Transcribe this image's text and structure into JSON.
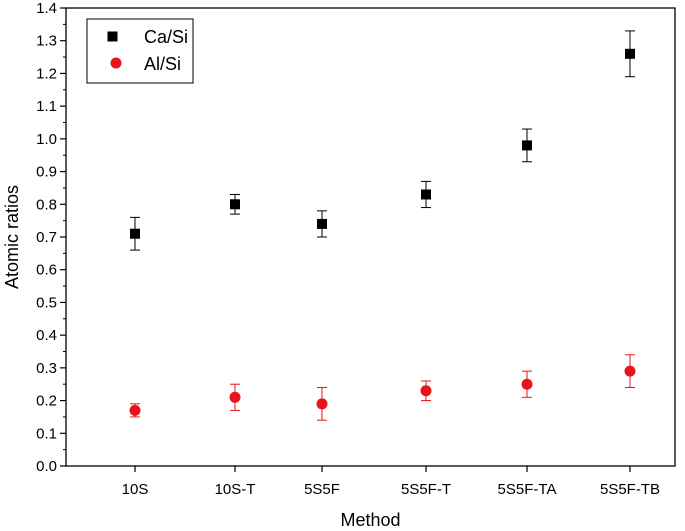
{
  "chart_data": {
    "type": "scatter",
    "title": "",
    "xlabel": "Method",
    "ylabel": "Atomic ratios",
    "categories": [
      "10S",
      "10S-T",
      "5S5F",
      "5S5F-T",
      "5S5F-TA",
      "5S5F-TB"
    ],
    "ylim": [
      0.0,
      1.4
    ],
    "yticks": [
      "0.0",
      "0.1",
      "0.2",
      "0.3",
      "0.4",
      "0.5",
      "0.6",
      "0.7",
      "0.8",
      "0.9",
      "1.0",
      "1.1",
      "1.2",
      "1.3",
      "1.4"
    ],
    "grid": false,
    "legend_position": "top-left",
    "series": [
      {
        "name": "Ca/Si",
        "marker": "square",
        "color": "#000000",
        "values": [
          0.71,
          0.8,
          0.74,
          0.83,
          0.98,
          1.26
        ],
        "errors": [
          0.05,
          0.03,
          0.04,
          0.04,
          0.05,
          0.07
        ]
      },
      {
        "name": "Al/Si",
        "marker": "circle",
        "color": "#e8141b",
        "values": [
          0.17,
          0.21,
          0.19,
          0.23,
          0.25,
          0.29
        ],
        "errors": [
          0.02,
          0.04,
          0.05,
          0.03,
          0.04,
          0.05
        ]
      }
    ]
  }
}
